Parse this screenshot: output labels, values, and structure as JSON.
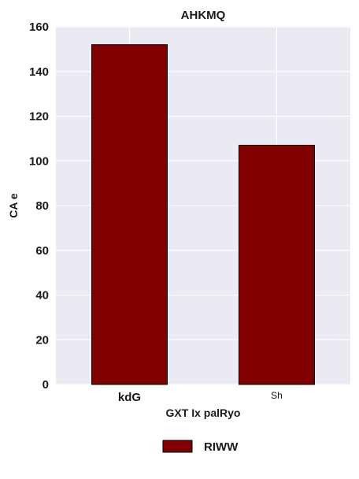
{
  "chart_data": {
    "type": "bar",
    "title": "AHKMQ",
    "xlabel": "GXT  Ix palRyo",
    "ylabel": "CA   e",
    "categories": [
      "kdG",
      "Sh"
    ],
    "category_label_bold": [
      true,
      false
    ],
    "series": [
      {
        "name": "RIWW",
        "values": [
          152,
          107
        ],
        "color": "#800000"
      }
    ],
    "ylim": [
      0,
      160
    ],
    "yticks": [
      0,
      20,
      40,
      60,
      80,
      100,
      120,
      140,
      160
    ],
    "grid": true,
    "legend_position": "bottom-center",
    "background_color": "#eaeaf2",
    "grid_color": "#ffffff",
    "bar_edge_color": "#000000"
  }
}
